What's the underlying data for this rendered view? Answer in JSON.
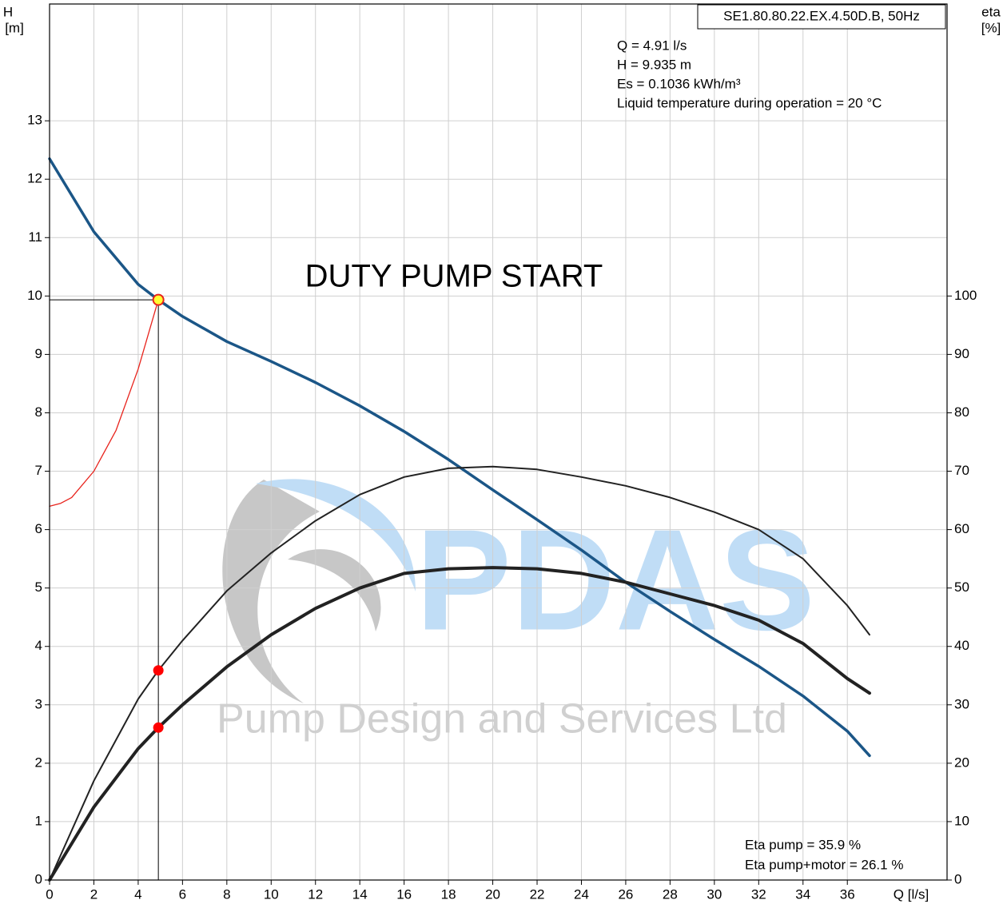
{
  "chart_data": {
    "type": "line",
    "title": "DUTY PUMP START",
    "pump_label": "SE1.80.80.22.EX.4.50D.B, 50Hz",
    "info": [
      "Q = 4.91 l/s",
      "H = 9.935 m",
      "Es = 0.1036 kWh/m³",
      "Liquid temperature during operation = 20 °C"
    ],
    "efficiency_info": [
      "Eta pump = 35.9 %",
      "Eta pump+motor = 26.1 %"
    ],
    "y_label": [
      "H",
      "[m]"
    ],
    "y2_label": [
      "eta",
      "[%]"
    ],
    "x_label": "Q [l/s]",
    "watermark": [
      "PDAS",
      "Pump Design and Services Ltd"
    ],
    "xlim": [
      0,
      40.5
    ],
    "xticks": [
      0,
      2,
      4,
      6,
      8,
      10,
      12,
      14,
      16,
      18,
      20,
      22,
      24,
      26,
      28,
      30,
      32,
      34,
      36
    ],
    "ylim": [
      0,
      15
    ],
    "yticks": [
      0,
      1,
      2,
      3,
      4,
      5,
      6,
      7,
      8,
      9,
      10,
      11,
      12,
      13
    ],
    "y2lim": [
      0,
      150
    ],
    "y2ticks": [
      0,
      10,
      20,
      30,
      40,
      50,
      60,
      70,
      80,
      90,
      100
    ],
    "grid": true,
    "series": [
      {
        "color": "#1b5687",
        "width": 3.5,
        "x": [
          0,
          2,
          4,
          4.91,
          6,
          8,
          10,
          12,
          14,
          16,
          18,
          20,
          22,
          24,
          26,
          28,
          30,
          32,
          34,
          36,
          37
        ],
        "values": [
          12.35,
          11.1,
          10.2,
          9.935,
          9.65,
          9.22,
          8.88,
          8.52,
          8.12,
          7.68,
          7.2,
          6.68,
          6.17,
          5.65,
          5.1,
          4.6,
          4.12,
          3.66,
          3.15,
          2.55,
          2.13
        ]
      },
      {
        "color": "#222222",
        "width": 2,
        "axis": "y2",
        "x": [
          0,
          2,
          4,
          4.91,
          6,
          8,
          10,
          12,
          14,
          16,
          18,
          20,
          22,
          24,
          26,
          28,
          30,
          32,
          34,
          36,
          37
        ],
        "values": [
          0,
          17,
          31,
          35.9,
          41,
          49.5,
          56,
          61.5,
          66,
          69,
          70.5,
          70.8,
          70.3,
          69,
          67.5,
          65.5,
          63,
          60,
          55,
          47,
          42
        ]
      },
      {
        "color": "#222222",
        "width": 4,
        "axis": "y2",
        "x": [
          0,
          2,
          4,
          4.91,
          6,
          8,
          10,
          12,
          14,
          16,
          18,
          20,
          22,
          24,
          26,
          28,
          30,
          32,
          34,
          36,
          37
        ],
        "values": [
          0,
          12.5,
          22.5,
          26.1,
          30,
          36.5,
          42,
          46.5,
          50,
          52.5,
          53.3,
          53.5,
          53.3,
          52.5,
          51,
          49,
          47,
          44.5,
          40.5,
          34.5,
          32
        ]
      },
      {
        "color": "#e8231c",
        "width": 1.3,
        "x": [
          0,
          0.5,
          1,
          2,
          3,
          4,
          4.91
        ],
        "values": [
          6.4,
          6.45,
          6.55,
          7.0,
          7.7,
          8.75,
          9.935
        ]
      }
    ],
    "duty_point": {
      "x": 4.91,
      "y": 9.935,
      "eta_pump": 35.9,
      "eta_pump_motor": 26.1
    }
  }
}
